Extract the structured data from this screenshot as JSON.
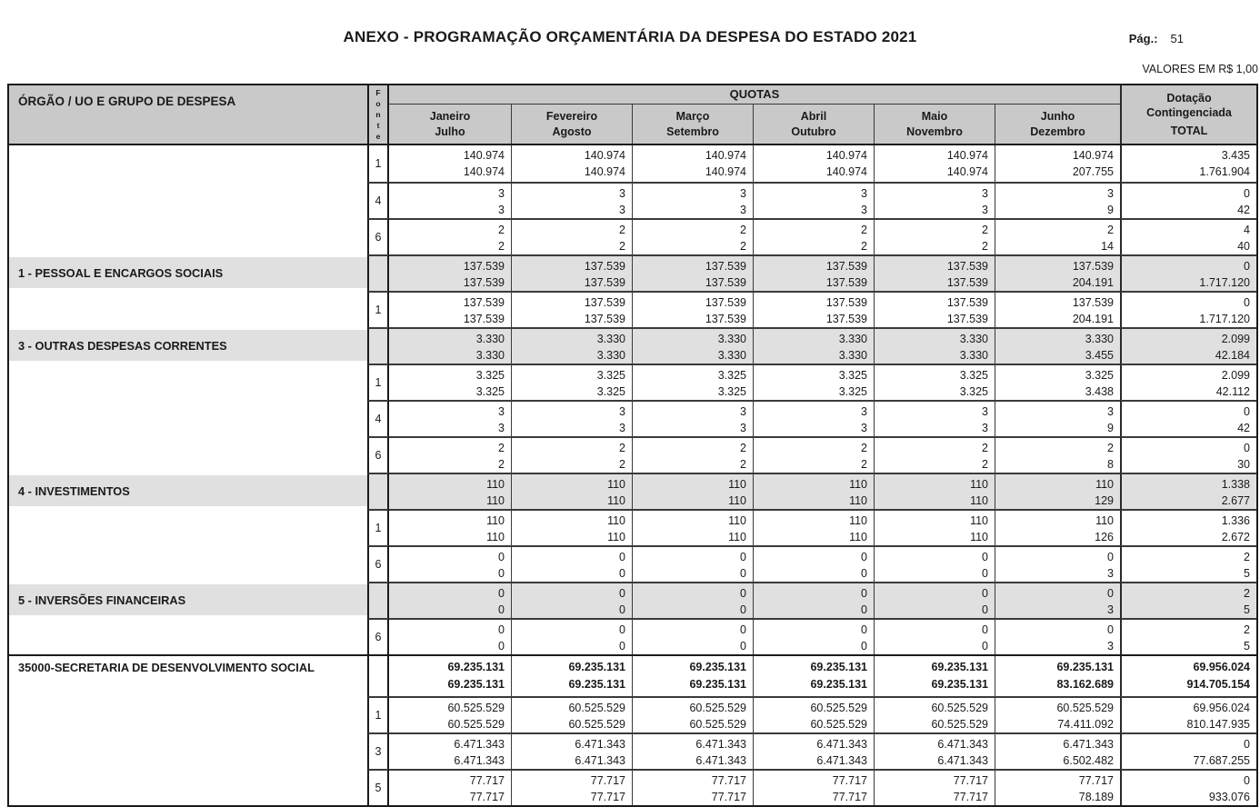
{
  "page": {
    "title": "ANEXO - PROGRAMAÇÃO ORÇAMENTÁRIA DA DESPESA DO ESTADO 2021",
    "page_label": "Pág.:",
    "page_number": "51",
    "values_note": "VALORES EM R$ 1,00"
  },
  "table": {
    "colors": {
      "header_bg": "#c9c9c9",
      "subtotal_row_bg": "#e0e0e0",
      "border": "#1a1a1a"
    },
    "header": {
      "col_organ": "ÓRGÃO / UO E GRUPO DE DESPESA",
      "col_fonte": "Fonte",
      "quotas": "QUOTAS",
      "months": [
        [
          "Janeiro",
          "Julho"
        ],
        [
          "Fevereiro",
          "Agosto"
        ],
        [
          "Março",
          "Setembro"
        ],
        [
          "Abril",
          "Outubro"
        ],
        [
          "Maio",
          "Novembro"
        ],
        [
          "Junho",
          "Dezembro"
        ]
      ],
      "dotacao": [
        "Dotação",
        "Contingenciada",
        "TOTAL"
      ]
    },
    "sections": [
      {
        "rows": [
          {
            "label": "",
            "fonte": "1",
            "style": "plain",
            "cells": [
              [
                "140.974",
                "140.974"
              ],
              [
                "140.974",
                "140.974"
              ],
              [
                "140.974",
                "140.974"
              ],
              [
                "140.974",
                "140.974"
              ],
              [
                "140.974",
                "140.974"
              ],
              [
                "140.974",
                "207.755"
              ],
              [
                "3.435",
                "1.761.904"
              ]
            ]
          },
          {
            "label": "",
            "fonte": "4",
            "style": "plain",
            "cells": [
              [
                "3",
                "3"
              ],
              [
                "3",
                "3"
              ],
              [
                "3",
                "3"
              ],
              [
                "3",
                "3"
              ],
              [
                "3",
                "3"
              ],
              [
                "3",
                "9"
              ],
              [
                "0",
                "42"
              ]
            ]
          },
          {
            "label": "",
            "fonte": "6",
            "style": "plain",
            "cells": [
              [
                "2",
                "2"
              ],
              [
                "2",
                "2"
              ],
              [
                "2",
                "2"
              ],
              [
                "2",
                "2"
              ],
              [
                "2",
                "2"
              ],
              [
                "2",
                "14"
              ],
              [
                "4",
                "40"
              ]
            ]
          },
          {
            "label": "1 - PESSOAL E ENCARGOS SOCIAIS",
            "fonte": "",
            "style": "subtotal",
            "cells": [
              [
                "137.539",
                "137.539"
              ],
              [
                "137.539",
                "137.539"
              ],
              [
                "137.539",
                "137.539"
              ],
              [
                "137.539",
                "137.539"
              ],
              [
                "137.539",
                "137.539"
              ],
              [
                "137.539",
                "204.191"
              ],
              [
                "0",
                "1.717.120"
              ]
            ]
          },
          {
            "label": "",
            "fonte": "1",
            "style": "plain",
            "cells": [
              [
                "137.539",
                "137.539"
              ],
              [
                "137.539",
                "137.539"
              ],
              [
                "137.539",
                "137.539"
              ],
              [
                "137.539",
                "137.539"
              ],
              [
                "137.539",
                "137.539"
              ],
              [
                "137.539",
                "204.191"
              ],
              [
                "0",
                "1.717.120"
              ]
            ]
          },
          {
            "label": "3 - OUTRAS DESPESAS CORRENTES",
            "fonte": "",
            "style": "subtotal",
            "cells": [
              [
                "3.330",
                "3.330"
              ],
              [
                "3.330",
                "3.330"
              ],
              [
                "3.330",
                "3.330"
              ],
              [
                "3.330",
                "3.330"
              ],
              [
                "3.330",
                "3.330"
              ],
              [
                "3.330",
                "3.455"
              ],
              [
                "2.099",
                "42.184"
              ]
            ]
          },
          {
            "label": "",
            "fonte": "1",
            "style": "plain",
            "cells": [
              [
                "3.325",
                "3.325"
              ],
              [
                "3.325",
                "3.325"
              ],
              [
                "3.325",
                "3.325"
              ],
              [
                "3.325",
                "3.325"
              ],
              [
                "3.325",
                "3.325"
              ],
              [
                "3.325",
                "3.438"
              ],
              [
                "2.099",
                "42.112"
              ]
            ]
          },
          {
            "label": "",
            "fonte": "4",
            "style": "plain",
            "cells": [
              [
                "3",
                "3"
              ],
              [
                "3",
                "3"
              ],
              [
                "3",
                "3"
              ],
              [
                "3",
                "3"
              ],
              [
                "3",
                "3"
              ],
              [
                "3",
                "9"
              ],
              [
                "0",
                "42"
              ]
            ]
          },
          {
            "label": "",
            "fonte": "6",
            "style": "plain",
            "cells": [
              [
                "2",
                "2"
              ],
              [
                "2",
                "2"
              ],
              [
                "2",
                "2"
              ],
              [
                "2",
                "2"
              ],
              [
                "2",
                "2"
              ],
              [
                "2",
                "8"
              ],
              [
                "0",
                "30"
              ]
            ]
          },
          {
            "label": "4 - INVESTIMENTOS",
            "fonte": "",
            "style": "subtotal",
            "cells": [
              [
                "110",
                "110"
              ],
              [
                "110",
                "110"
              ],
              [
                "110",
                "110"
              ],
              [
                "110",
                "110"
              ],
              [
                "110",
                "110"
              ],
              [
                "110",
                "129"
              ],
              [
                "1.338",
                "2.677"
              ]
            ]
          },
          {
            "label": "",
            "fonte": "1",
            "style": "plain",
            "cells": [
              [
                "110",
                "110"
              ],
              [
                "110",
                "110"
              ],
              [
                "110",
                "110"
              ],
              [
                "110",
                "110"
              ],
              [
                "110",
                "110"
              ],
              [
                "110",
                "126"
              ],
              [
                "1.336",
                "2.672"
              ]
            ]
          },
          {
            "label": "",
            "fonte": "6",
            "style": "plain",
            "cells": [
              [
                "0",
                "0"
              ],
              [
                "0",
                "0"
              ],
              [
                "0",
                "0"
              ],
              [
                "0",
                "0"
              ],
              [
                "0",
                "0"
              ],
              [
                "0",
                "3"
              ],
              [
                "2",
                "5"
              ]
            ]
          },
          {
            "label": "5 - INVERSÕES FINANCEIRAS",
            "fonte": "",
            "style": "subtotal",
            "cells": [
              [
                "0",
                "0"
              ],
              [
                "0",
                "0"
              ],
              [
                "0",
                "0"
              ],
              [
                "0",
                "0"
              ],
              [
                "0",
                "0"
              ],
              [
                "0",
                "3"
              ],
              [
                "2",
                "5"
              ]
            ]
          },
          {
            "label": "",
            "fonte": "6",
            "style": "plain",
            "cells": [
              [
                "0",
                "0"
              ],
              [
                "0",
                "0"
              ],
              [
                "0",
                "0"
              ],
              [
                "0",
                "0"
              ],
              [
                "0",
                "0"
              ],
              [
                "0",
                "3"
              ],
              [
                "2",
                "5"
              ]
            ]
          }
        ]
      },
      {
        "rows": [
          {
            "label": "35000-SECRETARIA DE DESENVOLVIMENTO SOCIAL",
            "fonte": "",
            "style": "bold",
            "cells": [
              [
                "69.235.131",
                "69.235.131"
              ],
              [
                "69.235.131",
                "69.235.131"
              ],
              [
                "69.235.131",
                "69.235.131"
              ],
              [
                "69.235.131",
                "69.235.131"
              ],
              [
                "69.235.131",
                "69.235.131"
              ],
              [
                "69.235.131",
                "83.162.689"
              ],
              [
                "69.956.024",
                "914.705.154"
              ]
            ]
          },
          {
            "label": "",
            "fonte": "1",
            "style": "plain",
            "cells": [
              [
                "60.525.529",
                "60.525.529"
              ],
              [
                "60.525.529",
                "60.525.529"
              ],
              [
                "60.525.529",
                "60.525.529"
              ],
              [
                "60.525.529",
                "60.525.529"
              ],
              [
                "60.525.529",
                "60.525.529"
              ],
              [
                "60.525.529",
                "74.411.092"
              ],
              [
                "69.956.024",
                "810.147.935"
              ]
            ]
          },
          {
            "label": "",
            "fonte": "3",
            "style": "plain",
            "cells": [
              [
                "6.471.343",
                "6.471.343"
              ],
              [
                "6.471.343",
                "6.471.343"
              ],
              [
                "6.471.343",
                "6.471.343"
              ],
              [
                "6.471.343",
                "6.471.343"
              ],
              [
                "6.471.343",
                "6.471.343"
              ],
              [
                "6.471.343",
                "6.502.482"
              ],
              [
                "0",
                "77.687.255"
              ]
            ]
          },
          {
            "label": "",
            "fonte": "5",
            "style": "plain",
            "cells": [
              [
                "77.717",
                "77.717"
              ],
              [
                "77.717",
                "77.717"
              ],
              [
                "77.717",
                "77.717"
              ],
              [
                "77.717",
                "77.717"
              ],
              [
                "77.717",
                "77.717"
              ],
              [
                "77.717",
                "78.189"
              ],
              [
                "0",
                "933.076"
              ]
            ]
          }
        ]
      }
    ]
  }
}
